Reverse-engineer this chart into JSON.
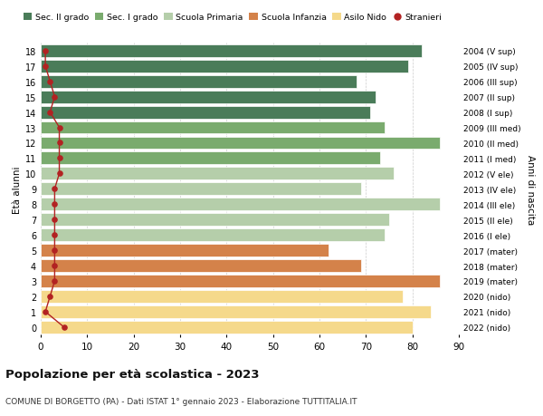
{
  "ages": [
    18,
    17,
    16,
    15,
    14,
    13,
    12,
    11,
    10,
    9,
    8,
    7,
    6,
    5,
    4,
    3,
    2,
    1,
    0
  ],
  "years": [
    "2004 (V sup)",
    "2005 (IV sup)",
    "2006 (III sup)",
    "2007 (II sup)",
    "2008 (I sup)",
    "2009 (III med)",
    "2010 (II med)",
    "2011 (I med)",
    "2012 (V ele)",
    "2013 (IV ele)",
    "2014 (III ele)",
    "2015 (II ele)",
    "2016 (I ele)",
    "2017 (mater)",
    "2018 (mater)",
    "2019 (mater)",
    "2020 (nido)",
    "2021 (nido)",
    "2022 (nido)"
  ],
  "values": [
    82,
    79,
    68,
    72,
    71,
    74,
    86,
    73,
    76,
    69,
    86,
    75,
    74,
    62,
    69,
    86,
    78,
    84,
    80
  ],
  "stranieri": [
    1,
    1,
    2,
    3,
    2,
    4,
    4,
    4,
    4,
    3,
    3,
    3,
    3,
    3,
    3,
    3,
    2,
    1,
    5
  ],
  "bar_colors": [
    "#4a7c59",
    "#4a7c59",
    "#4a7c59",
    "#4a7c59",
    "#4a7c59",
    "#7aab6e",
    "#7aab6e",
    "#7aab6e",
    "#b5ceaa",
    "#b5ceaa",
    "#b5ceaa",
    "#b5ceaa",
    "#b5ceaa",
    "#d4824a",
    "#d4824a",
    "#d4824a",
    "#f5d98b",
    "#f5d98b",
    "#f5d98b"
  ],
  "legend_labels": [
    "Sec. II grado",
    "Sec. I grado",
    "Scuola Primaria",
    "Scuola Infanzia",
    "Asilo Nido",
    "Stranieri"
  ],
  "legend_colors": [
    "#4a7c59",
    "#7aab6e",
    "#b5ceaa",
    "#d4824a",
    "#f5d98b",
    "#b22222"
  ],
  "title": "Popolazione per età scolastica - 2023",
  "subtitle": "COMUNE DI BORGETTO (PA) - Dati ISTAT 1° gennaio 2023 - Elaborazione TUTTITALIA.IT",
  "ylabel_left": "Età alunni",
  "ylabel_right": "Anni di nascita",
  "xlim": [
    0,
    90
  ],
  "xticks": [
    0,
    10,
    20,
    30,
    40,
    50,
    60,
    70,
    80,
    90
  ],
  "stranieri_color": "#b22222",
  "background_color": "#ffffff",
  "bar_edge_color": "#ffffff"
}
